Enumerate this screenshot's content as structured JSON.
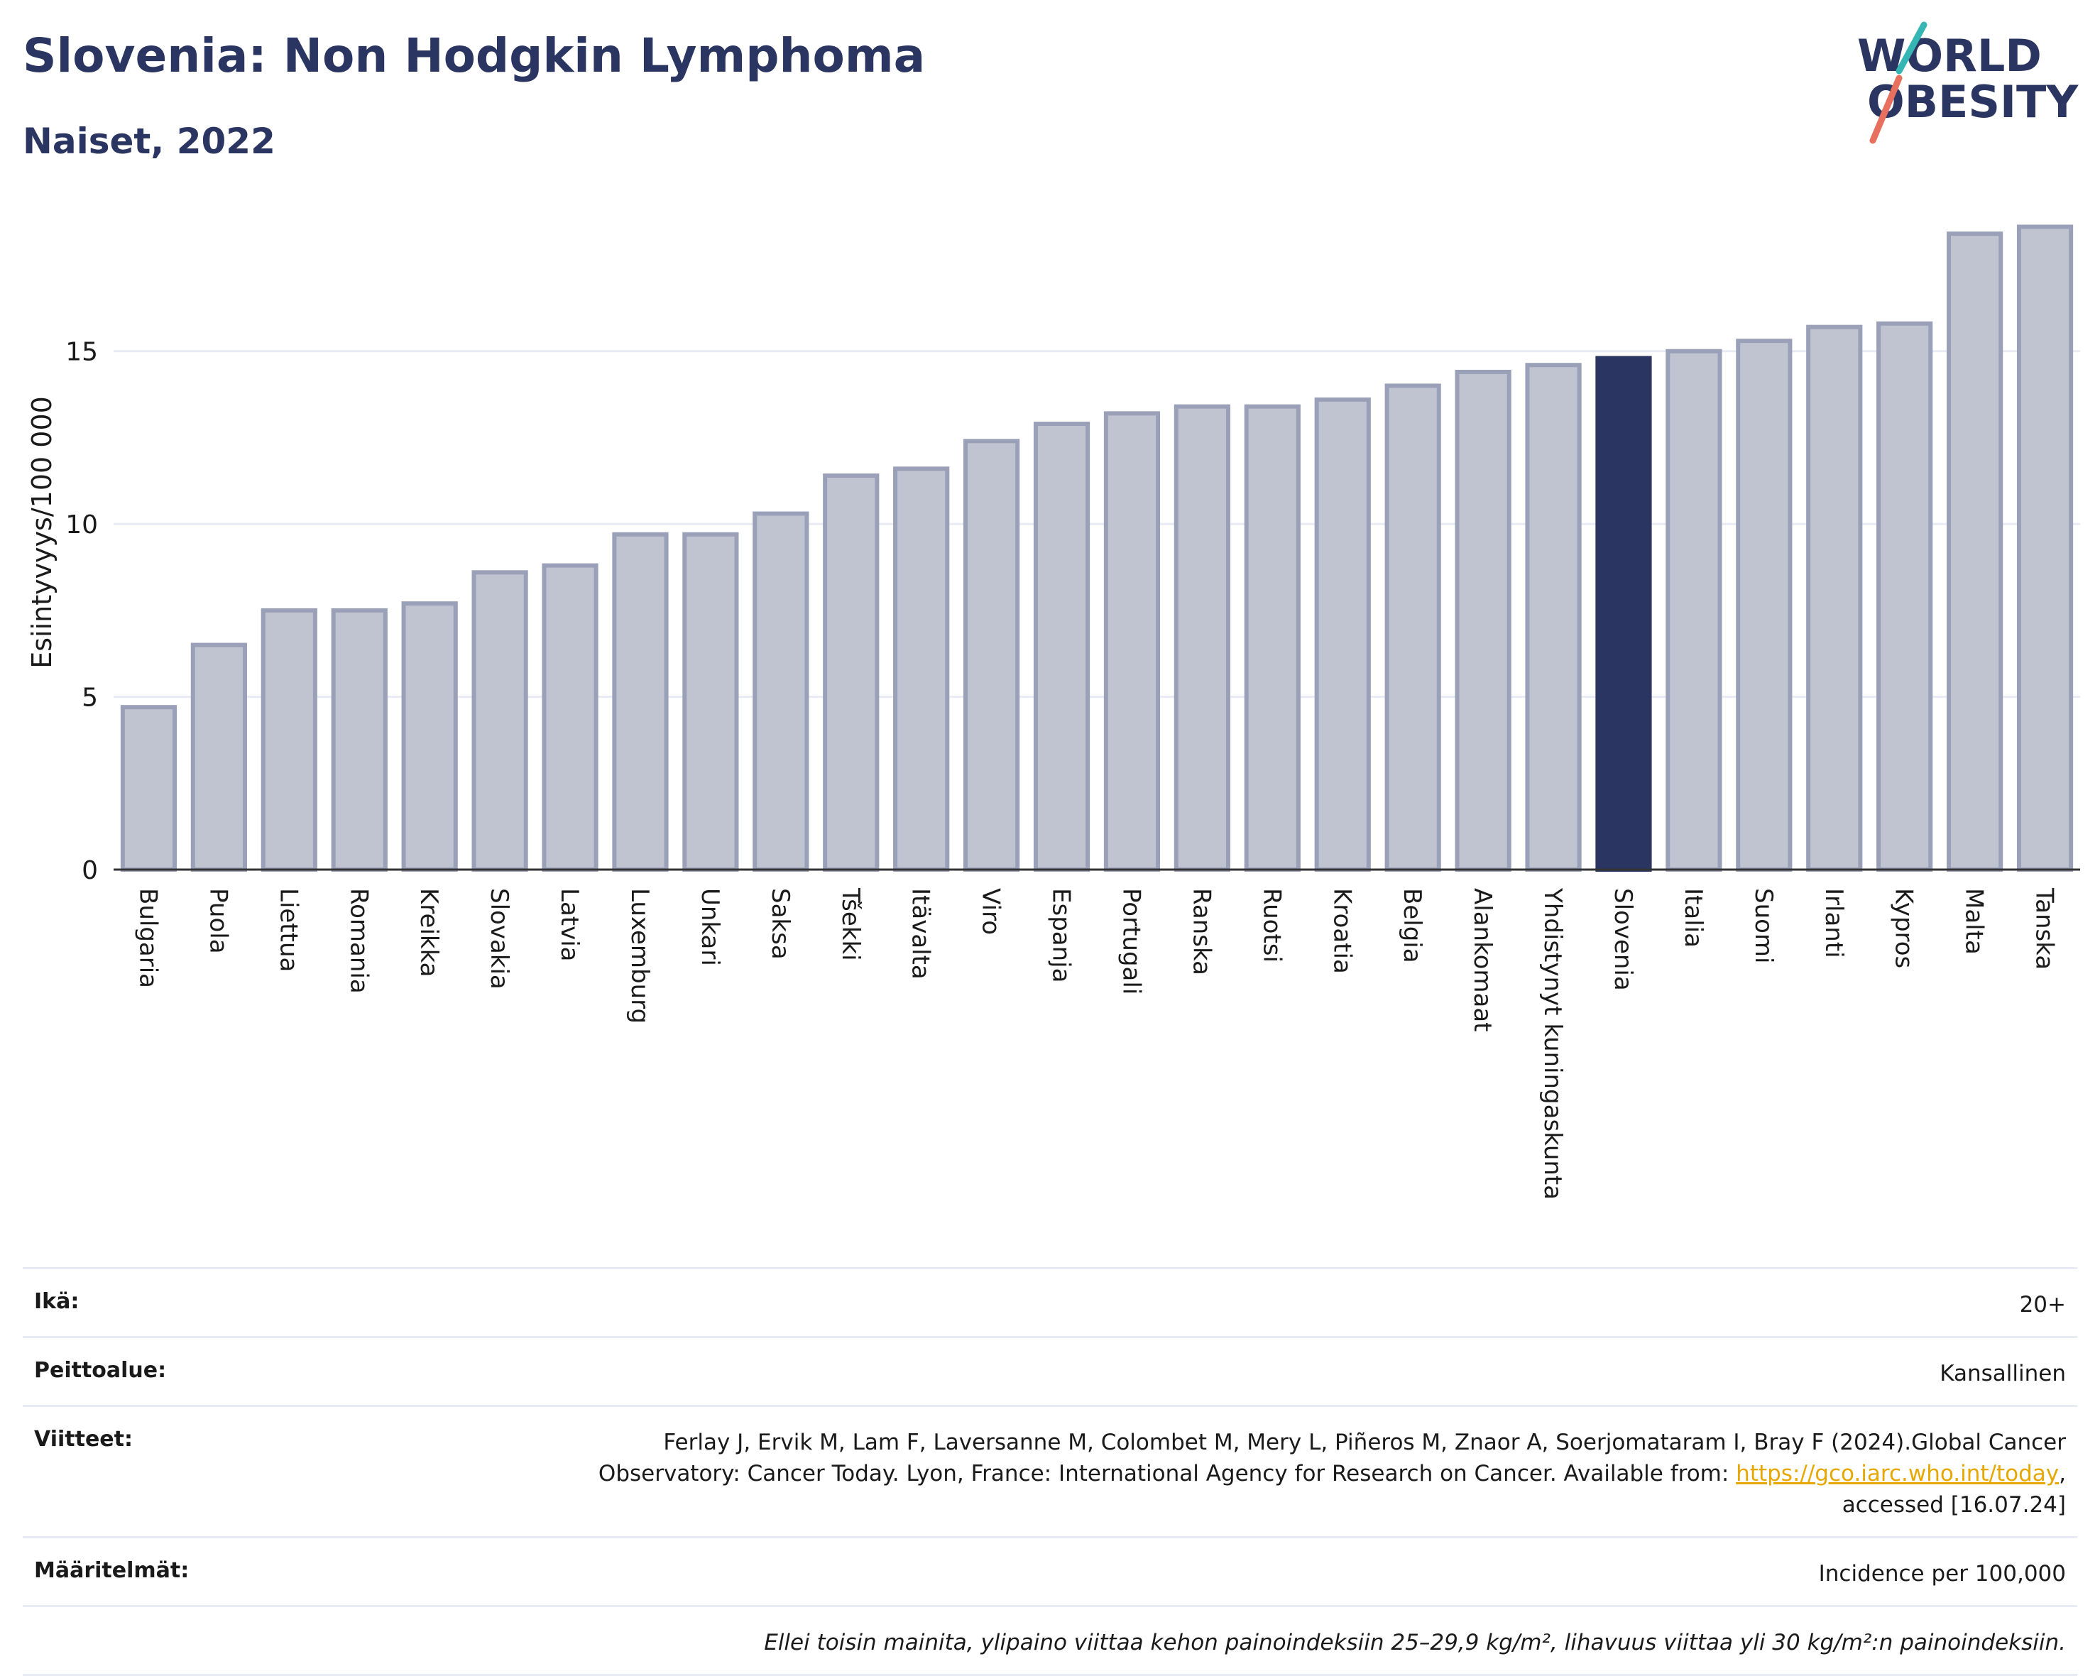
{
  "header": {
    "title": "Slovenia: Non Hodgkin Lymphoma",
    "subtitle": "Naiset, 2022",
    "logo_text_line1": "WORLD",
    "logo_text_line2": "OBESITY"
  },
  "chart_data": {
    "type": "bar",
    "ylabel": "Esiintyvyys/100 000",
    "ylim": [
      0,
      19
    ],
    "yticks": [
      0,
      5,
      10,
      15
    ],
    "grid": true,
    "categories": [
      "Bulgaria",
      "Puola",
      "Liettua",
      "Romania",
      "Kreikka",
      "Slovakia",
      "Latvia",
      "Luxemburg",
      "Unkari",
      "Saksa",
      "Tšekki",
      "Itävalta",
      "Viro",
      "Espanja",
      "Portugali",
      "Ranska",
      "Ruotsi",
      "Kroatia",
      "Belgia",
      "Alankomaat",
      "Yhdistynyt kuningaskunta",
      "Slovenia",
      "Italia",
      "Suomi",
      "Irlanti",
      "Kypros",
      "Malta",
      "Tanska"
    ],
    "values": [
      4.7,
      6.5,
      7.5,
      7.5,
      7.7,
      8.6,
      8.8,
      9.7,
      9.7,
      10.3,
      11.4,
      11.6,
      12.4,
      12.9,
      13.2,
      13.4,
      13.4,
      13.6,
      14.0,
      14.4,
      14.6,
      14.8,
      15.0,
      15.3,
      15.7,
      15.8,
      18.4,
      18.6
    ],
    "highlight": "Slovenia",
    "colors": {
      "bar": "#c0c3d0",
      "bar_stroke": "#9aa0b8",
      "highlight": "#2b3561",
      "grid": "#e8ebf3",
      "axis": "#333333"
    }
  },
  "meta": {
    "age_label": "Ikä:",
    "age_value": "20+",
    "coverage_label": "Peittoalue:",
    "coverage_value": "Kansallinen",
    "refs_label": "Viitteet:",
    "refs_line1": "Ferlay J, Ervik M, Lam F, Laversanne M, Colombet M, Mery L, Piñeros M, Znaor A, Soerjomataram I, Bray F (2024).Global Cancer",
    "refs_line2_pre": "Observatory: Cancer Today. Lyon, France: International Agency for Research on Cancer. Available from: ",
    "refs_link": "https://gco.iarc.who.int/today",
    "refs_line2_post": ",",
    "refs_line3": "accessed [16.07.24]",
    "definitions_label": "Määritelmät:",
    "definitions_value": "Incidence per 100,000",
    "note": "Ellei toisin mainita, ylipaino viittaa kehon painoindeksiin 25–29,9 kg/m², lihavuus viittaa yli 30 kg/m²:n painoindeksiin."
  }
}
